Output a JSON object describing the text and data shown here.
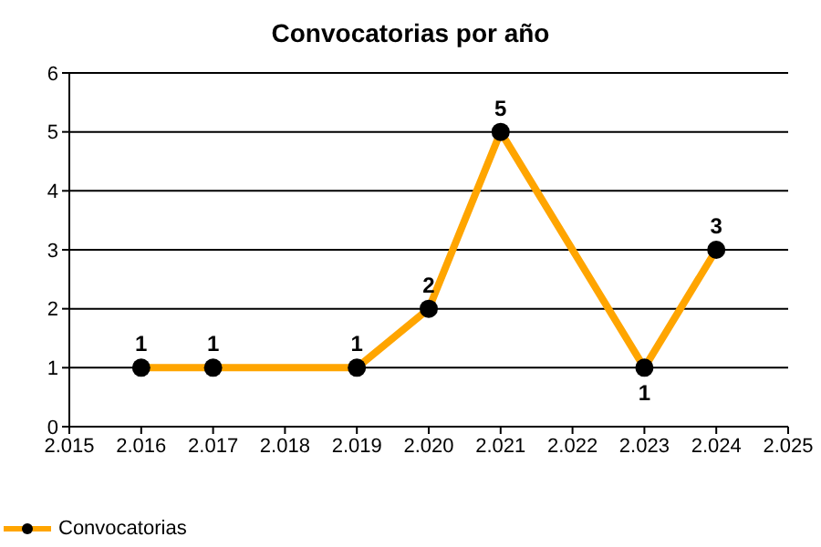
{
  "chart_data": {
    "type": "line",
    "title": "Convocatorias por año",
    "x": [
      2016,
      2017,
      2019,
      2020,
      2021,
      2023,
      2024
    ],
    "series": [
      {
        "name": "Convocatorias",
        "color": "#ffa500",
        "values": [
          1,
          1,
          1,
          2,
          5,
          1,
          3
        ]
      }
    ],
    "xlim": [
      2015,
      2025
    ],
    "xticks": [
      {
        "value": 2015,
        "label": "2.015"
      },
      {
        "value": 2016,
        "label": "2.016"
      },
      {
        "value": 2017,
        "label": "2.017"
      },
      {
        "value": 2018,
        "label": "2.018"
      },
      {
        "value": 2019,
        "label": "2.019"
      },
      {
        "value": 2020,
        "label": "2.020"
      },
      {
        "value": 2021,
        "label": "2.021"
      },
      {
        "value": 2022,
        "label": "2.022"
      },
      {
        "value": 2023,
        "label": "2.023"
      },
      {
        "value": 2024,
        "label": "2.024"
      },
      {
        "value": 2025,
        "label": "2.025"
      }
    ],
    "ylim": [
      0,
      6
    ],
    "yticks": [
      0,
      1,
      2,
      3,
      4,
      5,
      6
    ],
    "grid": "y",
    "legend": "bottom left",
    "marker": "circle",
    "line_style": "solid",
    "data_labels": true
  }
}
